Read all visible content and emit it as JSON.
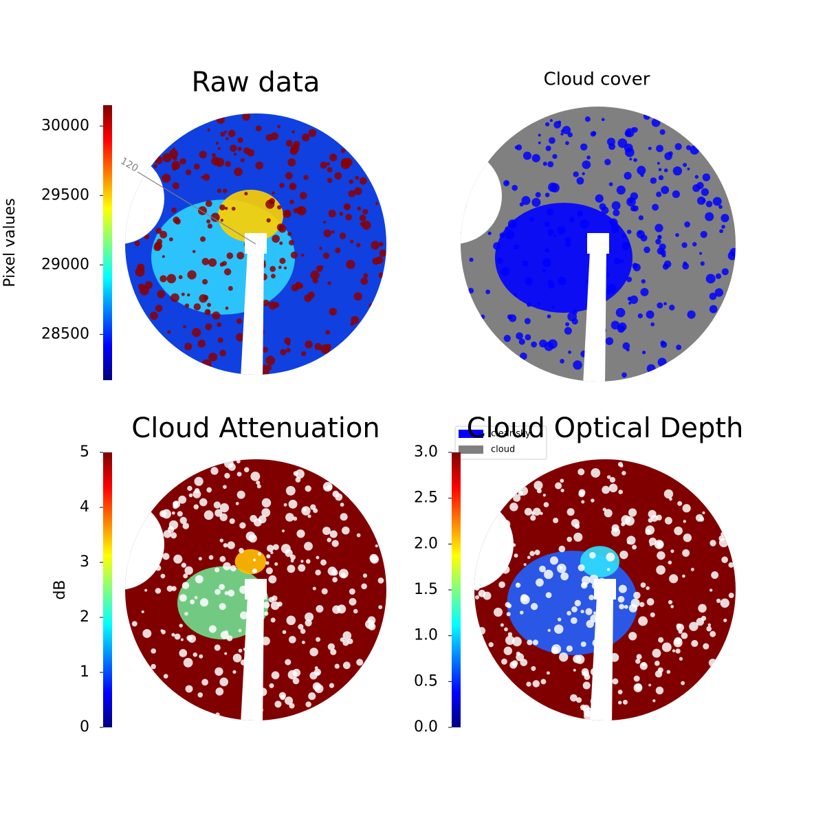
{
  "chart_data": [
    {
      "type": "image",
      "title": "Raw data",
      "colormap": "jet",
      "colorbar_label": "Pixel values",
      "clim": [
        28170,
        30150
      ],
      "cticks": [
        28500,
        29000,
        29500,
        30000
      ],
      "annotations": [
        "120"
      ]
    },
    {
      "type": "image",
      "title": "Cloud cover",
      "series": [
        {
          "name": "clear sky",
          "color": "#0000ff"
        },
        {
          "name": "cloud",
          "color": "#808080"
        }
      ]
    },
    {
      "type": "image",
      "title": "Cloud Attenuation",
      "colormap": "jet",
      "colorbar_label": "dB",
      "clim": [
        0,
        5
      ],
      "cticks": [
        0,
        1,
        2,
        3,
        4,
        5
      ]
    },
    {
      "type": "image",
      "title": "Cloud Optical Depth",
      "colormap": "jet",
      "clim": [
        0,
        3
      ],
      "cticks": [
        {
          "value": 0,
          "label": "0.0"
        },
        {
          "value": 0.5,
          "label": "0.5"
        },
        {
          "value": 1,
          "label": "1.0"
        },
        {
          "value": 1.5,
          "label": "1.5"
        },
        {
          "value": 2,
          "label": "2.0"
        },
        {
          "value": 2.5,
          "label": "2.5"
        },
        {
          "value": 3,
          "label": "3.0"
        }
      ]
    }
  ]
}
